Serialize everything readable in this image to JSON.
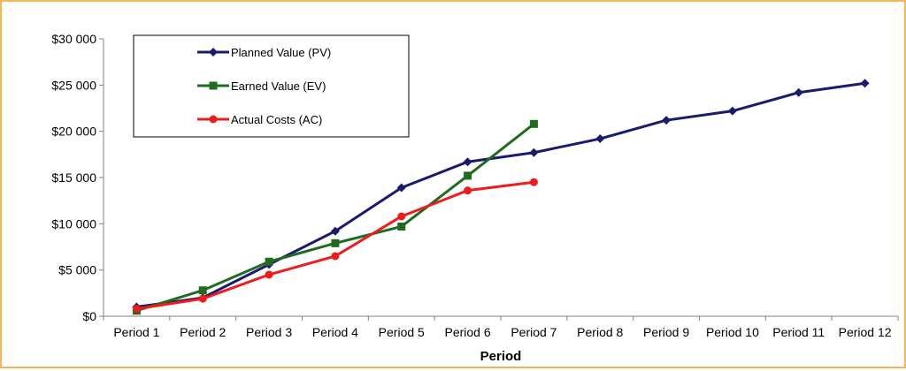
{
  "chart_data": {
    "type": "line",
    "title": "",
    "xlabel": "Period",
    "ylabel": "",
    "ylim": [
      0,
      30000
    ],
    "yticks": [
      0,
      5000,
      10000,
      15000,
      20000,
      25000,
      30000
    ],
    "ytick_labels": [
      "$0",
      "$5 000",
      "$10 000",
      "$15 000",
      "$20 000",
      "$25 000",
      "$30 000"
    ],
    "categories": [
      "Period 1",
      "Period 2",
      "Period 3",
      "Period 4",
      "Period 5",
      "Period 6",
      "Period 7",
      "Period 8",
      "Period 9",
      "Period 10",
      "Period 11",
      "Period 12"
    ],
    "grid": false,
    "legend_position": "top-left",
    "series": [
      {
        "name": "Planned Value (PV)",
        "color": "#1a1a6e",
        "marker": "diamond",
        "values": [
          1000,
          2000,
          5600,
          9200,
          13900,
          16700,
          17700,
          19200,
          21200,
          22200,
          24200,
          25200
        ]
      },
      {
        "name": "Earned Value (EV)",
        "color": "#1f6b1f",
        "marker": "square",
        "values": [
          600,
          2800,
          5900,
          7900,
          9700,
          15200,
          20800,
          null,
          null,
          null,
          null,
          null
        ]
      },
      {
        "name": "Actual Costs (AC)",
        "color": "#ee1c1c",
        "marker": "circle",
        "values": [
          800,
          1900,
          4500,
          6500,
          10800,
          13600,
          14500,
          null,
          null,
          null,
          null,
          null
        ]
      }
    ]
  }
}
